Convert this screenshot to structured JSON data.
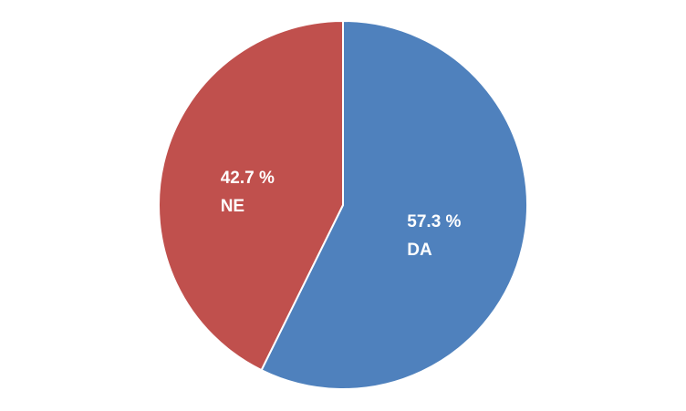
{
  "chart_data": {
    "type": "pie",
    "start": "top",
    "direction": "clockwise",
    "slices": [
      {
        "category": "DA",
        "value": 57.3,
        "value_label": "57.3 %",
        "color": "#4f81bd"
      },
      {
        "category": "NE",
        "value": 42.7,
        "value_label": "42.7 %",
        "color": "#c0504d"
      }
    ],
    "slice_border_color": "#ffffff",
    "legend": "none",
    "label_color": "#ffffff"
  }
}
